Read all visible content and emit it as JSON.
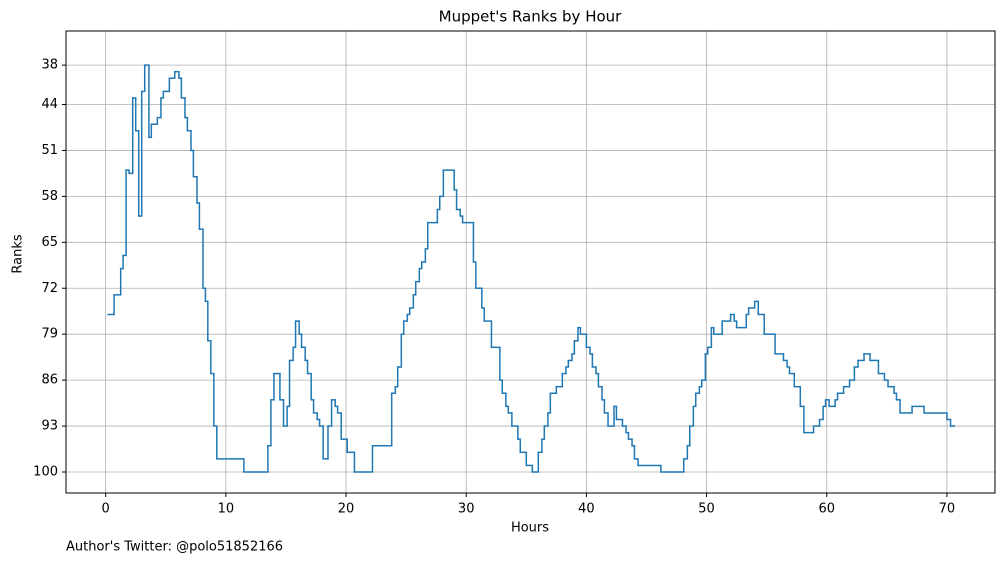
{
  "chart_data": {
    "type": "line",
    "step": "post",
    "title": "Muppet's Ranks by Hour",
    "x_label": "Hours",
    "y_label": "Ranks",
    "footnote": "Author's Twitter: @polo51852166",
    "xlim": [
      -3.3,
      74
    ],
    "xticks": [
      0,
      10,
      20,
      30,
      40,
      50,
      60,
      70
    ],
    "ylim": [
      103.2,
      32.8
    ],
    "yticks": [
      38,
      44,
      51,
      58,
      65,
      72,
      79,
      86,
      93,
      100
    ],
    "grid": true,
    "color": "#1f77b4",
    "x": [
      0.2,
      0.7,
      1.25,
      1.45,
      1.7,
      1.95,
      2.25,
      2.5,
      2.75,
      3.0,
      3.25,
      3.6,
      3.8,
      4.3,
      4.6,
      4.8,
      5.3,
      5.75,
      6.1,
      6.3,
      6.6,
      6.8,
      7.1,
      7.3,
      7.6,
      7.8,
      8.1,
      8.3,
      8.5,
      8.75,
      9.0,
      9.25,
      11.5,
      13.5,
      13.75,
      14.0,
      14.5,
      14.8,
      15.1,
      15.3,
      15.6,
      15.8,
      16.1,
      16.3,
      16.6,
      16.8,
      17.1,
      17.3,
      17.6,
      17.8,
      18.1,
      18.5,
      18.8,
      19.1,
      19.3,
      19.6,
      20.1,
      20.7,
      22.2,
      23.8,
      24.1,
      24.3,
      24.6,
      24.8,
      25.1,
      25.3,
      25.6,
      25.8,
      26.1,
      26.3,
      26.6,
      26.8,
      27.6,
      27.8,
      28.1,
      29.0,
      29.2,
      29.5,
      29.7,
      30.6,
      30.8,
      31.3,
      31.5,
      32.1,
      32.8,
      33.0,
      33.3,
      33.5,
      33.8,
      34.3,
      34.5,
      35.0,
      35.5,
      36.0,
      36.3,
      36.5,
      36.8,
      37.0,
      37.5,
      38.0,
      38.3,
      38.5,
      38.8,
      39.0,
      39.3,
      39.5,
      40.0,
      40.3,
      40.5,
      40.8,
      41.0,
      41.3,
      41.5,
      41.8,
      42.3,
      42.5,
      43.0,
      43.3,
      43.5,
      43.8,
      44.0,
      44.3,
      46.2,
      48.1,
      48.4,
      48.6,
      48.9,
      49.1,
      49.4,
      49.6,
      49.9,
      50.1,
      50.4,
      50.6,
      51.3,
      52.0,
      52.3,
      52.5,
      53.3,
      53.5,
      54.0,
      54.3,
      54.8,
      55.7,
      56.4,
      56.7,
      56.9,
      57.3,
      57.8,
      58.1,
      58.9,
      59.4,
      59.7,
      59.9,
      60.2,
      60.7,
      60.9,
      61.4,
      61.9,
      62.3,
      62.6,
      63.1,
      63.6,
      64.3,
      64.8,
      65.1,
      65.6,
      65.8,
      66.1,
      67.1,
      68.1,
      70.0,
      70.3,
      70.6
    ],
    "values": [
      76,
      73,
      69,
      67,
      54,
      54.5,
      43,
      48,
      61,
      42,
      38,
      49,
      47,
      46,
      43,
      42,
      40,
      39,
      40,
      43,
      46,
      48,
      51,
      55,
      59,
      63,
      72,
      74,
      80,
      85,
      93,
      98,
      100,
      96,
      89,
      85,
      89,
      93,
      90,
      83,
      81,
      77,
      79,
      81,
      83,
      85,
      89,
      91,
      92,
      93,
      98,
      93,
      89,
      90,
      91,
      95,
      97,
      100,
      96,
      88,
      87,
      84,
      79,
      77,
      76,
      75,
      73,
      71,
      69,
      68,
      66,
      62,
      60,
      58,
      54,
      57,
      60,
      61,
      62,
      68,
      72,
      75,
      77,
      81,
      86,
      88,
      90,
      91,
      93,
      95,
      97,
      99,
      100,
      97,
      95,
      93,
      91,
      88,
      87,
      85,
      84,
      83,
      82,
      80,
      78,
      79,
      81,
      82,
      84,
      85,
      87,
      89,
      91,
      93,
      90,
      92,
      93,
      94,
      95,
      96,
      98,
      99,
      100,
      98,
      96,
      93,
      90,
      88,
      87,
      86,
      82,
      81,
      78,
      79,
      77,
      76,
      77,
      78,
      76,
      75,
      74,
      76,
      79,
      82,
      83,
      84,
      85,
      87,
      90,
      94,
      93,
      92,
      90,
      89,
      90,
      89,
      88,
      87,
      86,
      84,
      83,
      82,
      83,
      85,
      86,
      87,
      88,
      89,
      91,
      90,
      91,
      92,
      93,
      93
    ]
  }
}
